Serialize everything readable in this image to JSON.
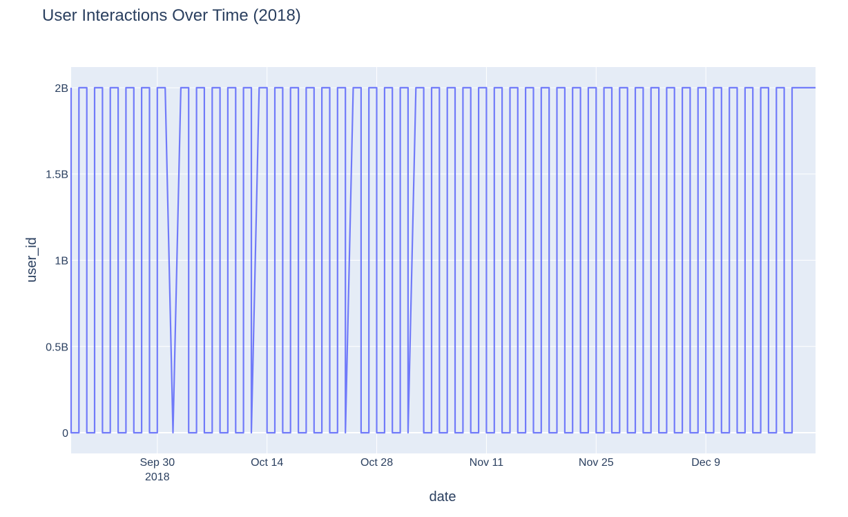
{
  "chart_data": {
    "type": "line",
    "title": "User Interactions Over Time (2018)",
    "xlabel": "date",
    "ylabel": "user_id",
    "x_range": [
      "2018-09-19",
      "2018-12-23"
    ],
    "ylim": [
      -120000000.0,
      2120000000.0
    ],
    "y_ticks": [
      {
        "value": 0,
        "label": "0"
      },
      {
        "value": 500000000,
        "label": "0.5B"
      },
      {
        "value": 1000000000,
        "label": "1B"
      },
      {
        "value": 1500000000,
        "label": "1.5B"
      },
      {
        "value": 2000000000,
        "label": "2B"
      }
    ],
    "x_ticks": [
      {
        "date": "2018-09-30",
        "label": "Sep 30",
        "sublabel": "2018"
      },
      {
        "date": "2018-10-14",
        "label": "Oct 14"
      },
      {
        "date": "2018-10-28",
        "label": "Oct 28"
      },
      {
        "date": "2018-11-11",
        "label": "Nov 11"
      },
      {
        "date": "2018-11-25",
        "label": "Nov 25"
      },
      {
        "date": "2018-12-09",
        "label": "Dec 9"
      }
    ],
    "grid": true,
    "colors": {
      "line": "#636efa",
      "plot_bg": "#e5ecf6",
      "grid": "#ffffff",
      "text": "#2a3f5f"
    },
    "series": [
      {
        "values_note": "",
        "points": [
          [
            "2018-09-19",
            2000000000
          ],
          [
            "2018-09-19",
            0
          ],
          [
            "2018-09-20",
            0
          ],
          [
            "2018-09-20",
            2000000000
          ],
          [
            "2018-09-21",
            2000000000
          ],
          [
            "2018-09-21",
            0
          ],
          [
            "2018-09-22",
            0
          ],
          [
            "2018-09-22",
            2000000000
          ],
          [
            "2018-09-23",
            2000000000
          ],
          [
            "2018-09-23",
            0
          ],
          [
            "2018-09-24",
            0
          ],
          [
            "2018-09-24",
            2000000000
          ],
          [
            "2018-09-25",
            2000000000
          ],
          [
            "2018-09-25",
            0
          ],
          [
            "2018-09-26",
            0
          ],
          [
            "2018-09-26",
            2000000000
          ],
          [
            "2018-09-27",
            2000000000
          ],
          [
            "2018-09-27",
            0
          ],
          [
            "2018-09-28",
            0
          ],
          [
            "2018-09-28",
            2000000000
          ],
          [
            "2018-09-29",
            2000000000
          ],
          [
            "2018-09-29",
            0
          ],
          [
            "2018-09-30",
            0
          ],
          [
            "2018-09-30",
            2000000000
          ],
          [
            "2018-10-01",
            2000000000
          ],
          [
            "2018-10-02",
            0
          ],
          [
            "2018-10-03",
            2000000000
          ],
          [
            "2018-10-04",
            2000000000
          ],
          [
            "2018-10-04",
            0
          ],
          [
            "2018-10-05",
            0
          ],
          [
            "2018-10-05",
            2000000000
          ],
          [
            "2018-10-06",
            2000000000
          ],
          [
            "2018-10-06",
            0
          ],
          [
            "2018-10-07",
            0
          ],
          [
            "2018-10-07",
            2000000000
          ],
          [
            "2018-10-08",
            2000000000
          ],
          [
            "2018-10-08",
            0
          ],
          [
            "2018-10-09",
            0
          ],
          [
            "2018-10-09",
            2000000000
          ],
          [
            "2018-10-10",
            2000000000
          ],
          [
            "2018-10-10",
            0
          ],
          [
            "2018-10-11",
            0
          ],
          [
            "2018-10-11",
            2000000000
          ],
          [
            "2018-10-12",
            2000000000
          ],
          [
            "2018-10-12",
            0
          ],
          [
            "2018-10-13",
            2000000000
          ],
          [
            "2018-10-14",
            2000000000
          ],
          [
            "2018-10-14",
            0
          ],
          [
            "2018-10-15",
            0
          ],
          [
            "2018-10-15",
            2000000000
          ],
          [
            "2018-10-16",
            2000000000
          ],
          [
            "2018-10-16",
            0
          ],
          [
            "2018-10-17",
            0
          ],
          [
            "2018-10-17",
            2000000000
          ],
          [
            "2018-10-18",
            2000000000
          ],
          [
            "2018-10-18",
            0
          ],
          [
            "2018-10-19",
            0
          ],
          [
            "2018-10-19",
            2000000000
          ],
          [
            "2018-10-20",
            2000000000
          ],
          [
            "2018-10-20",
            0
          ],
          [
            "2018-10-21",
            0
          ],
          [
            "2018-10-21",
            2000000000
          ],
          [
            "2018-10-22",
            2000000000
          ],
          [
            "2018-10-22",
            0
          ],
          [
            "2018-10-23",
            0
          ],
          [
            "2018-10-23",
            2000000000
          ],
          [
            "2018-10-24",
            2000000000
          ],
          [
            "2018-10-24",
            0
          ],
          [
            "2018-10-25",
            2000000000
          ],
          [
            "2018-10-26",
            2000000000
          ],
          [
            "2018-10-26",
            0
          ],
          [
            "2018-10-27",
            0
          ],
          [
            "2018-10-27",
            2000000000
          ],
          [
            "2018-10-28",
            2000000000
          ],
          [
            "2018-10-28",
            0
          ],
          [
            "2018-10-29",
            0
          ],
          [
            "2018-10-29",
            2000000000
          ],
          [
            "2018-10-30",
            2000000000
          ],
          [
            "2018-10-30",
            0
          ],
          [
            "2018-10-31",
            0
          ],
          [
            "2018-10-31",
            2000000000
          ],
          [
            "2018-11-01",
            2000000000
          ],
          [
            "2018-11-01",
            0
          ],
          [
            "2018-11-02",
            2000000000
          ],
          [
            "2018-11-03",
            2000000000
          ],
          [
            "2018-11-03",
            0
          ],
          [
            "2018-11-04",
            0
          ],
          [
            "2018-11-04",
            2000000000
          ],
          [
            "2018-11-05",
            2000000000
          ],
          [
            "2018-11-05",
            0
          ],
          [
            "2018-11-06",
            0
          ],
          [
            "2018-11-06",
            2000000000
          ],
          [
            "2018-11-07",
            2000000000
          ],
          [
            "2018-11-07",
            0
          ],
          [
            "2018-11-08",
            0
          ],
          [
            "2018-11-08",
            2000000000
          ],
          [
            "2018-11-09",
            2000000000
          ],
          [
            "2018-11-09",
            0
          ],
          [
            "2018-11-10",
            0
          ],
          [
            "2018-11-10",
            2000000000
          ],
          [
            "2018-11-11",
            2000000000
          ],
          [
            "2018-11-11",
            0
          ],
          [
            "2018-11-12",
            0
          ],
          [
            "2018-11-12",
            2000000000
          ],
          [
            "2018-11-13",
            2000000000
          ],
          [
            "2018-11-13",
            0
          ],
          [
            "2018-11-14",
            0
          ],
          [
            "2018-11-14",
            2000000000
          ],
          [
            "2018-11-15",
            2000000000
          ],
          [
            "2018-11-15",
            0
          ],
          [
            "2018-11-16",
            0
          ],
          [
            "2018-11-16",
            2000000000
          ],
          [
            "2018-11-17",
            2000000000
          ],
          [
            "2018-11-17",
            0
          ],
          [
            "2018-11-18",
            0
          ],
          [
            "2018-11-18",
            2000000000
          ],
          [
            "2018-11-19",
            2000000000
          ],
          [
            "2018-11-19",
            0
          ],
          [
            "2018-11-20",
            0
          ],
          [
            "2018-11-20",
            2000000000
          ],
          [
            "2018-11-21",
            2000000000
          ],
          [
            "2018-11-21",
            0
          ],
          [
            "2018-11-22",
            0
          ],
          [
            "2018-11-22",
            2000000000
          ],
          [
            "2018-11-23",
            2000000000
          ],
          [
            "2018-11-23",
            0
          ],
          [
            "2018-11-24",
            0
          ],
          [
            "2018-11-24",
            2000000000
          ],
          [
            "2018-11-25",
            2000000000
          ],
          [
            "2018-11-25",
            0
          ],
          [
            "2018-11-26",
            0
          ],
          [
            "2018-11-26",
            2000000000
          ],
          [
            "2018-11-27",
            2000000000
          ],
          [
            "2018-11-27",
            0
          ],
          [
            "2018-11-28",
            0
          ],
          [
            "2018-11-28",
            2000000000
          ],
          [
            "2018-11-29",
            2000000000
          ],
          [
            "2018-11-29",
            0
          ],
          [
            "2018-11-30",
            0
          ],
          [
            "2018-11-30",
            2000000000
          ],
          [
            "2018-12-01",
            2000000000
          ],
          [
            "2018-12-01",
            0
          ],
          [
            "2018-12-02",
            0
          ],
          [
            "2018-12-02",
            2000000000
          ],
          [
            "2018-12-03",
            2000000000
          ],
          [
            "2018-12-03",
            0
          ],
          [
            "2018-12-04",
            0
          ],
          [
            "2018-12-04",
            2000000000
          ],
          [
            "2018-12-05",
            2000000000
          ],
          [
            "2018-12-05",
            0
          ],
          [
            "2018-12-06",
            0
          ],
          [
            "2018-12-06",
            2000000000
          ],
          [
            "2018-12-07",
            2000000000
          ],
          [
            "2018-12-07",
            0
          ],
          [
            "2018-12-08",
            0
          ],
          [
            "2018-12-08",
            2000000000
          ],
          [
            "2018-12-09",
            2000000000
          ],
          [
            "2018-12-09",
            0
          ],
          [
            "2018-12-10",
            0
          ],
          [
            "2018-12-10",
            2000000000
          ],
          [
            "2018-12-11",
            2000000000
          ],
          [
            "2018-12-11",
            0
          ],
          [
            "2018-12-12",
            0
          ],
          [
            "2018-12-12",
            2000000000
          ],
          [
            "2018-12-13",
            2000000000
          ],
          [
            "2018-12-13",
            0
          ],
          [
            "2018-12-14",
            0
          ],
          [
            "2018-12-14",
            2000000000
          ],
          [
            "2018-12-15",
            2000000000
          ],
          [
            "2018-12-15",
            0
          ],
          [
            "2018-12-16",
            0
          ],
          [
            "2018-12-16",
            2000000000
          ],
          [
            "2018-12-17",
            2000000000
          ],
          [
            "2018-12-17",
            0
          ],
          [
            "2018-12-18",
            0
          ],
          [
            "2018-12-18",
            2000000000
          ],
          [
            "2018-12-19",
            2000000000
          ],
          [
            "2018-12-19",
            0
          ],
          [
            "2018-12-20",
            0
          ],
          [
            "2018-12-20",
            2000000000
          ],
          [
            "2018-12-23",
            2000000000
          ]
        ]
      }
    ]
  }
}
